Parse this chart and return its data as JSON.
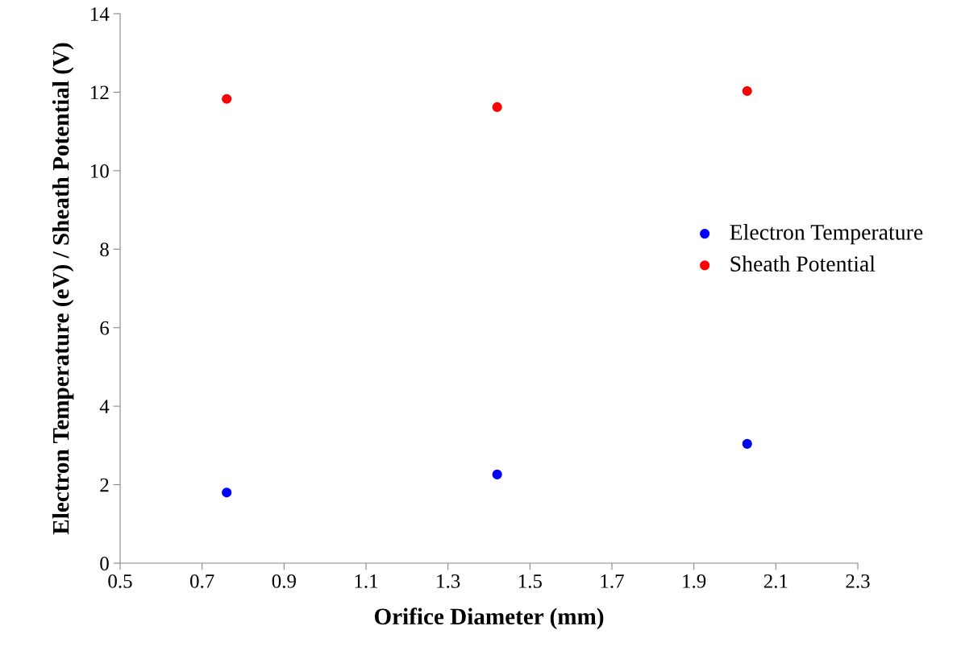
{
  "chart_data": {
    "type": "scatter",
    "xlabel": "Orifice Diameter (mm)",
    "ylabel": "Electron Temperature (eV) / Sheath Potential (V)",
    "xlim": [
      0.5,
      2.3
    ],
    "xticks": [
      0.5,
      0.7,
      0.9,
      1.1,
      1.3,
      1.5,
      1.7,
      1.9,
      2.1,
      2.3
    ],
    "ylim": [
      0,
      14
    ],
    "yticks": [
      0,
      2,
      4,
      6,
      8,
      10,
      12,
      14
    ],
    "x": [
      0.76,
      1.42,
      2.03
    ],
    "series": [
      {
        "name": "Electron Temperature",
        "color": "#0000ff",
        "values": [
          1.8,
          2.26,
          3.04
        ]
      },
      {
        "name": "Sheath Potential",
        "color": "#ff0000",
        "values": [
          11.83,
          11.62,
          12.03
        ]
      }
    ],
    "marker": "circle",
    "legend": "right",
    "grid": false
  }
}
